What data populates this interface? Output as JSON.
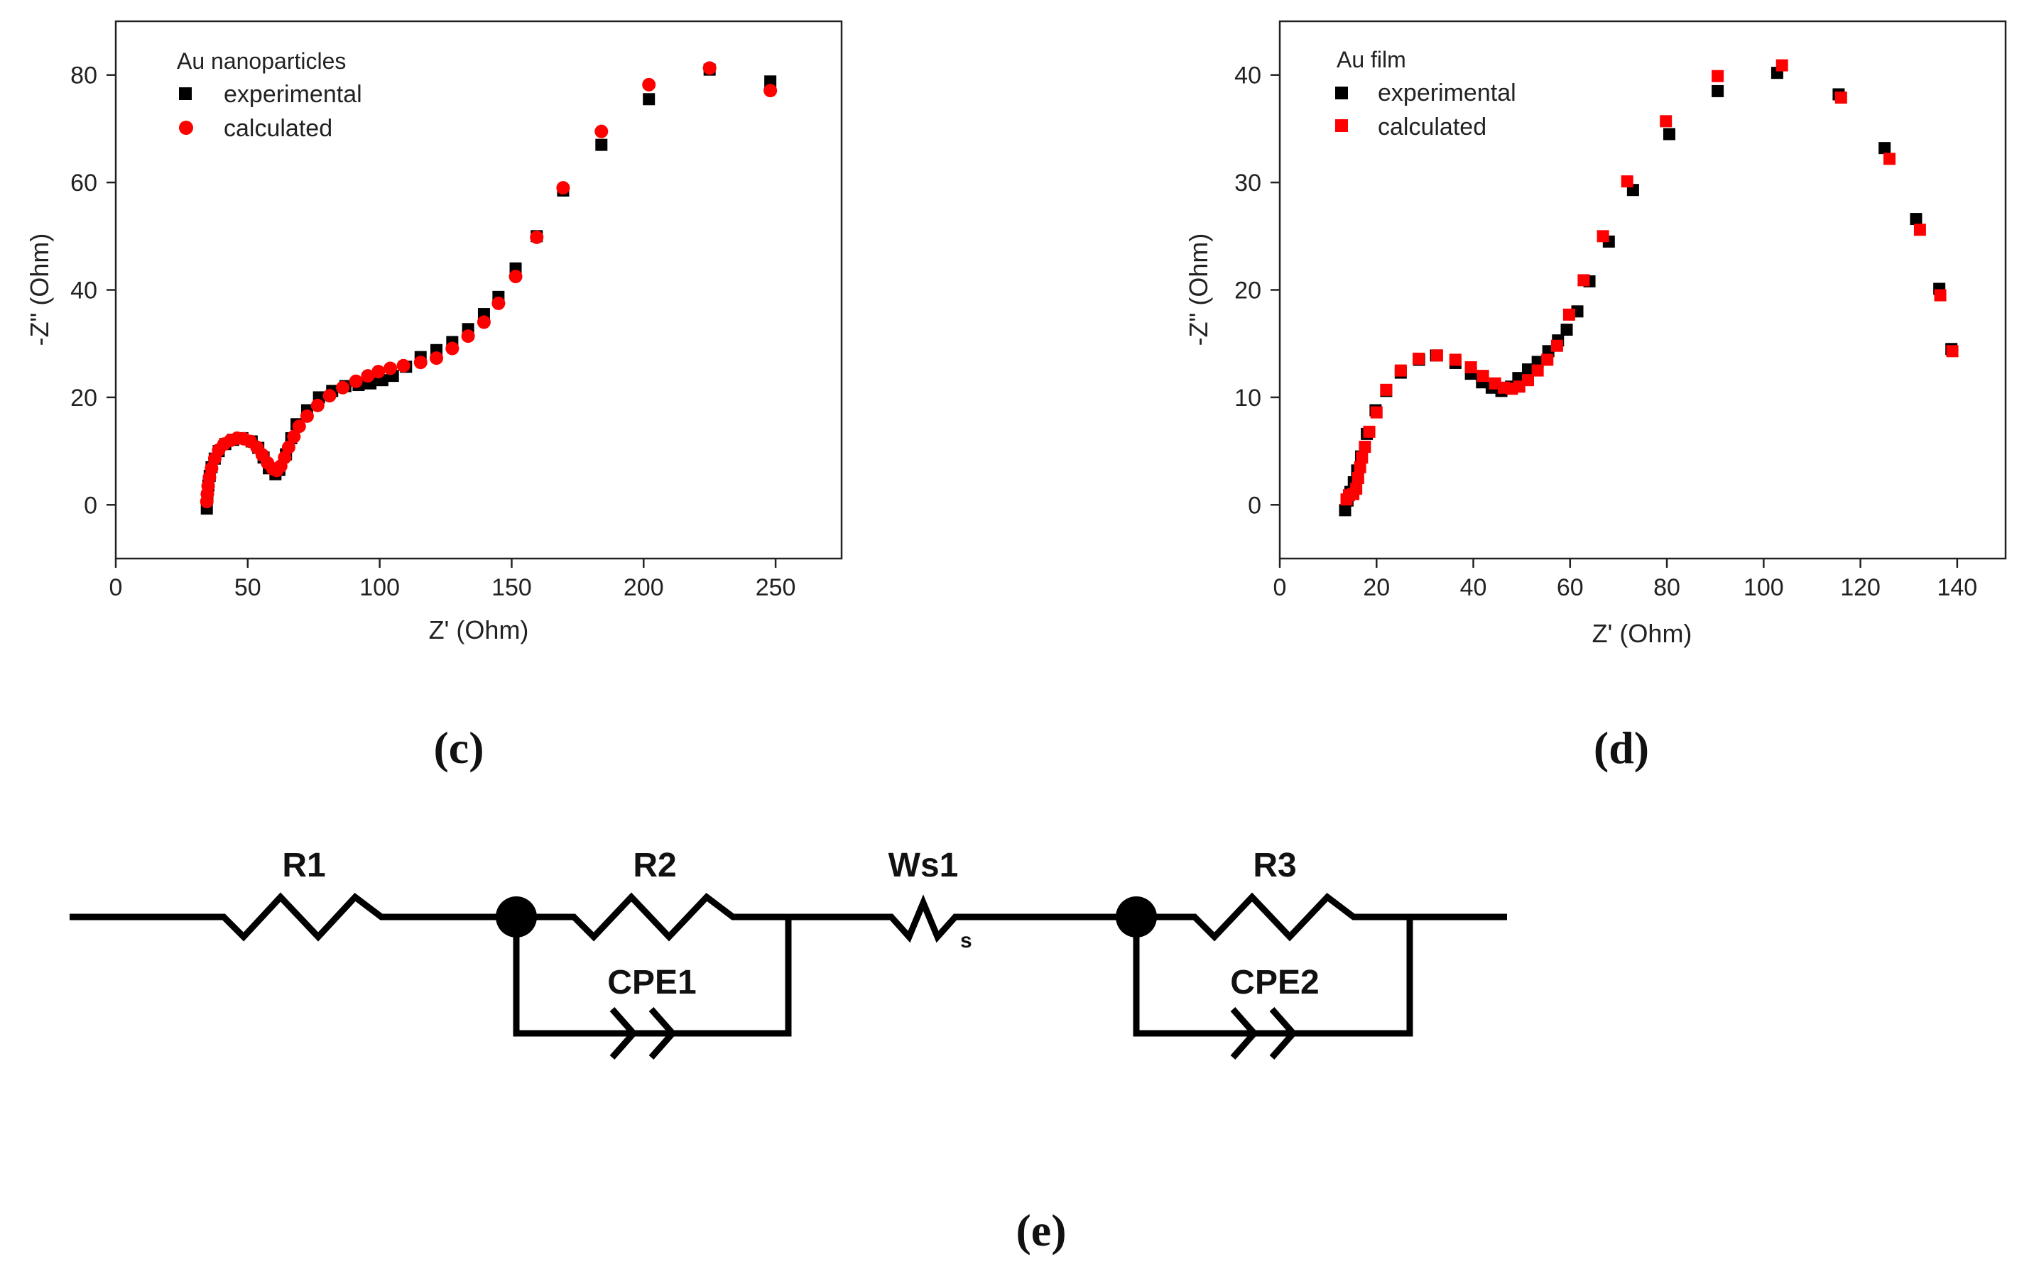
{
  "colors": {
    "experimental": "#000000",
    "calculated": "#ff0000",
    "axis": "#222222"
  },
  "chart_data": [
    {
      "type": "scatter",
      "panel": "(c)",
      "title": "",
      "legend_title": "Au nanoparticles",
      "legend_position": "top-left",
      "xlabel": "Z' (Ohm)",
      "ylabel": "-Z\" (Ohm)",
      "xlim": [
        0,
        275
      ],
      "ylim": [
        -10,
        90
      ],
      "xticks": [
        0,
        50,
        100,
        150,
        200,
        250
      ],
      "yticks": [
        0,
        20,
        40,
        60,
        80
      ],
      "series": [
        {
          "name": "experimental",
          "marker": "square",
          "color": "#000000",
          "points": [
            [
              34.5,
              -0.7
            ],
            [
              34.7,
              1.6
            ],
            [
              35.1,
              3.6
            ],
            [
              35.6,
              5.4
            ],
            [
              36.3,
              7.0
            ],
            [
              37.5,
              8.6
            ],
            [
              39.0,
              10.0
            ],
            [
              41.5,
              11.3
            ],
            [
              44.5,
              12.1
            ],
            [
              48.0,
              12.4
            ],
            [
              51.5,
              11.8
            ],
            [
              54.0,
              10.6
            ],
            [
              56.0,
              8.8
            ],
            [
              58.0,
              6.8
            ],
            [
              60.5,
              5.7
            ],
            [
              62.0,
              6.5
            ],
            [
              64.5,
              9.4
            ],
            [
              66.5,
              12.4
            ],
            [
              68.5,
              15.0
            ],
            [
              72.5,
              17.6
            ],
            [
              77.0,
              20.0
            ],
            [
              82.0,
              21.2
            ],
            [
              87.0,
              22.1
            ],
            [
              92.0,
              22.3
            ],
            [
              96.5,
              22.6
            ],
            [
              101.0,
              23.2
            ],
            [
              105.0,
              24.0
            ],
            [
              110.0,
              25.7
            ],
            [
              115.5,
              27.5
            ],
            [
              121.5,
              28.8
            ],
            [
              127.5,
              30.3
            ],
            [
              133.5,
              32.7
            ],
            [
              139.5,
              35.5
            ],
            [
              145.0,
              38.7
            ],
            [
              151.5,
              44.0
            ],
            [
              159.5,
              50.0
            ],
            [
              169.5,
              58.5
            ],
            [
              184.0,
              67.0
            ],
            [
              202.0,
              75.5
            ],
            [
              225.0,
              81.0
            ],
            [
              248.0,
              78.8
            ]
          ]
        },
        {
          "name": "calculated",
          "marker": "circle",
          "color": "#ff0000",
          "points": [
            [
              34.5,
              0.6
            ],
            [
              34.7,
              2.0
            ],
            [
              35.0,
              3.5
            ],
            [
              35.5,
              5.1
            ],
            [
              36.3,
              6.8
            ],
            [
              37.5,
              8.6
            ],
            [
              39.0,
              10.2
            ],
            [
              41.0,
              11.3
            ],
            [
              43.5,
              12.0
            ],
            [
              46.0,
              12.4
            ],
            [
              48.5,
              12.3
            ],
            [
              51.0,
              11.8
            ],
            [
              53.5,
              10.7
            ],
            [
              55.5,
              9.3
            ],
            [
              57.5,
              7.8
            ],
            [
              59.5,
              6.7
            ],
            [
              61.0,
              6.4
            ],
            [
              62.5,
              7.2
            ],
            [
              64.0,
              8.8
            ],
            [
              65.5,
              10.7
            ],
            [
              67.5,
              12.7
            ],
            [
              69.5,
              14.6
            ],
            [
              72.5,
              16.5
            ],
            [
              76.5,
              18.5
            ],
            [
              81.0,
              20.3
            ],
            [
              86.0,
              21.8
            ],
            [
              91.0,
              23.0
            ],
            [
              95.5,
              24.0
            ],
            [
              99.5,
              24.8
            ],
            [
              104.0,
              25.4
            ],
            [
              109.0,
              25.9
            ],
            [
              115.5,
              26.5
            ],
            [
              121.5,
              27.3
            ],
            [
              127.5,
              29.1
            ],
            [
              133.5,
              31.4
            ],
            [
              139.5,
              34.0
            ],
            [
              145.0,
              37.5
            ],
            [
              151.5,
              42.5
            ],
            [
              159.5,
              49.8
            ],
            [
              169.5,
              59.0
            ],
            [
              184.0,
              69.5
            ],
            [
              202.0,
              78.2
            ],
            [
              225.0,
              81.3
            ],
            [
              248.0,
              77.1
            ]
          ]
        }
      ]
    },
    {
      "type": "scatter",
      "panel": "(d)",
      "title": "",
      "legend_title": "Au film",
      "legend_position": "top-left",
      "xlabel": "Z' (Ohm)",
      "ylabel": "-Z\" (Ohm)",
      "xlim": [
        0,
        150
      ],
      "ylim": [
        -5,
        45
      ],
      "xticks": [
        0,
        20,
        40,
        60,
        80,
        100,
        120,
        140
      ],
      "yticks": [
        0,
        10,
        20,
        30,
        40
      ],
      "series": [
        {
          "name": "experimental",
          "marker": "square",
          "color": "#000000",
          "points": [
            [
              13.5,
              -0.5
            ],
            [
              14.0,
              0.4
            ],
            [
              14.6,
              1.2
            ],
            [
              15.3,
              2.1
            ],
            [
              16.0,
              3.2
            ],
            [
              16.8,
              4.5
            ],
            [
              18.0,
              6.6
            ],
            [
              19.8,
              8.8
            ],
            [
              22.0,
              10.6
            ],
            [
              25.0,
              12.3
            ],
            [
              28.8,
              13.5
            ],
            [
              32.3,
              13.9
            ],
            [
              36.3,
              13.2
            ],
            [
              39.5,
              12.2
            ],
            [
              41.8,
              11.4
            ],
            [
              43.8,
              10.9
            ],
            [
              45.8,
              10.6
            ],
            [
              47.8,
              11.0
            ],
            [
              49.3,
              11.8
            ],
            [
              51.3,
              12.6
            ],
            [
              53.3,
              13.3
            ],
            [
              55.5,
              14.3
            ],
            [
              57.5,
              15.3
            ],
            [
              59.3,
              16.3
            ],
            [
              61.5,
              18.0
            ],
            [
              64.0,
              20.8
            ],
            [
              68.0,
              24.5
            ],
            [
              73.0,
              29.3
            ],
            [
              80.5,
              34.5
            ],
            [
              90.5,
              38.5
            ],
            [
              102.8,
              40.2
            ],
            [
              115.5,
              38.2
            ],
            [
              125.0,
              33.2
            ],
            [
              131.5,
              26.6
            ],
            [
              136.3,
              20.1
            ],
            [
              138.8,
              14.5
            ]
          ]
        },
        {
          "name": "calculated",
          "marker": "square",
          "color": "#ff0000",
          "points": [
            [
              13.8,
              0.5
            ],
            [
              14.3,
              0.9
            ],
            [
              15.2,
              1.0
            ],
            [
              15.8,
              1.5
            ],
            [
              16.2,
              2.5
            ],
            [
              16.6,
              3.5
            ],
            [
              17.0,
              4.4
            ],
            [
              17.6,
              5.4
            ],
            [
              18.5,
              6.8
            ],
            [
              20.0,
              8.6
            ],
            [
              22.0,
              10.7
            ],
            [
              25.0,
              12.5
            ],
            [
              28.7,
              13.6
            ],
            [
              32.5,
              13.9
            ],
            [
              36.3,
              13.5
            ],
            [
              39.5,
              12.8
            ],
            [
              42.0,
              12.0
            ],
            [
              44.5,
              11.3
            ],
            [
              46.3,
              10.9
            ],
            [
              48.0,
              10.8
            ],
            [
              49.5,
              11.0
            ],
            [
              51.3,
              11.6
            ],
            [
              53.3,
              12.5
            ],
            [
              55.3,
              13.5
            ],
            [
              57.3,
              14.8
            ],
            [
              59.8,
              17.7
            ],
            [
              62.8,
              20.9
            ],
            [
              66.8,
              25.0
            ],
            [
              71.8,
              30.1
            ],
            [
              79.8,
              35.7
            ],
            [
              90.5,
              39.9
            ],
            [
              103.8,
              40.9
            ],
            [
              116.0,
              37.9
            ],
            [
              126.0,
              32.2
            ],
            [
              132.3,
              25.6
            ],
            [
              136.5,
              19.5
            ],
            [
              139.0,
              14.3
            ]
          ]
        }
      ]
    }
  ],
  "panels": {
    "c": "(c)",
    "d": "(d)",
    "e": "(e)"
  },
  "circuit": {
    "labels": {
      "r1": "R1",
      "r2": "R2",
      "ws1": "Ws1",
      "ws_sub": "s",
      "r3": "R3",
      "cpe1": "CPE1",
      "cpe2": "CPE2"
    }
  }
}
